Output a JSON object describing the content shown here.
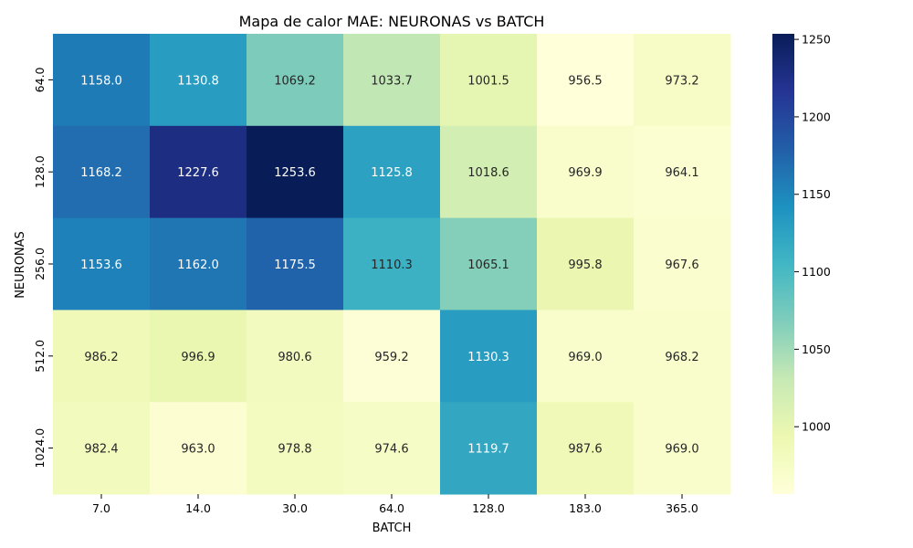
{
  "chart_data": {
    "type": "heatmap",
    "title": "Mapa de calor MAE: NEURONAS vs BATCH",
    "xlabel": "BATCH",
    "ylabel": "NEURONAS",
    "x_categories": [
      "7.0",
      "14.0",
      "30.0",
      "64.0",
      "128.0",
      "183.0",
      "365.0"
    ],
    "y_categories": [
      "64.0",
      "128.0",
      "256.0",
      "512.0",
      "1024.0"
    ],
    "values": [
      [
        1158.0,
        1130.8,
        1069.2,
        1033.7,
        1001.5,
        956.5,
        973.2
      ],
      [
        1168.2,
        1227.6,
        1253.6,
        1125.8,
        1018.6,
        969.9,
        964.1
      ],
      [
        1153.6,
        1162.0,
        1175.5,
        1110.3,
        1065.1,
        995.8,
        967.6
      ],
      [
        986.2,
        996.9,
        980.6,
        959.2,
        1130.3,
        969.0,
        968.2
      ],
      [
        982.4,
        963.0,
        978.8,
        974.6,
        1119.7,
        987.6,
        969.0
      ]
    ],
    "value_format": "0.0",
    "vmin": 956.5,
    "vmax": 1253.6,
    "colormap": "YlGnBu",
    "colorbar_ticks": [
      "1000",
      "1050",
      "1100",
      "1150",
      "1200",
      "1250"
    ],
    "grid": false,
    "legend": "colorbar-right"
  }
}
